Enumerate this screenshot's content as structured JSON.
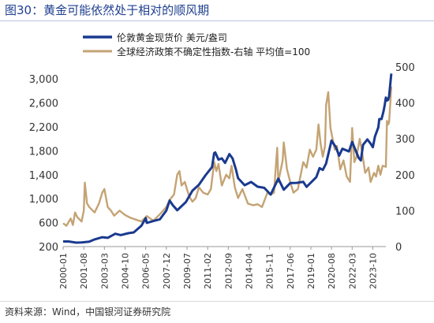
{
  "figure": {
    "title": "图30：黄金可能依然处于相对的顺风期",
    "source": "资料来源：Wind，中国银河证券研究院"
  },
  "chart_data": {
    "type": "line",
    "title": "图30：黄金可能依然处于相对的顺风期",
    "xlabel": "",
    "ylabel": "",
    "x_range": [
      "2000-01",
      "2024-10"
    ],
    "x_tick_labels": [
      "2000-01",
      "2001-08",
      "2003-03",
      "2004-10",
      "2006-05",
      "2007-12",
      "2009-07",
      "2011-02",
      "2012-09",
      "2014-04",
      "2015-11",
      "2017-06",
      "2019-01",
      "2020-08",
      "2022-03",
      "2023-10"
    ],
    "y_left": {
      "ylim": [
        200,
        3200
      ],
      "ticks": [
        200,
        600,
        1000,
        1400,
        1800,
        2200,
        2600,
        3000
      ],
      "tick_labels": [
        "200",
        "600",
        "1,000",
        "1,400",
        "1,800",
        "2,200",
        "2,600",
        "3,000"
      ]
    },
    "y_right": {
      "ylim": [
        0,
        500
      ],
      "ticks": [
        0,
        100,
        200,
        300,
        400,
        500
      ],
      "tick_labels": [
        "0",
        "100",
        "200",
        "300",
        "400",
        "500"
      ]
    },
    "grid": false,
    "legend_position": "top-center",
    "series": [
      {
        "name": "伦敦黄金现货价 美元/盎司",
        "axis": "left",
        "color": "#1a3a8f",
        "points": [
          [
            "2000-01",
            285
          ],
          [
            "2000-06",
            285
          ],
          [
            "2001-01",
            266
          ],
          [
            "2001-06",
            270
          ],
          [
            "2002-01",
            281
          ],
          [
            "2002-06",
            320
          ],
          [
            "2003-01",
            356
          ],
          [
            "2003-06",
            346
          ],
          [
            "2004-01",
            414
          ],
          [
            "2004-06",
            392
          ],
          [
            "2005-01",
            424
          ],
          [
            "2005-06",
            437
          ],
          [
            "2006-01",
            549
          ],
          [
            "2006-05",
            675
          ],
          [
            "2006-06",
            596
          ],
          [
            "2007-01",
            631
          ],
          [
            "2007-06",
            655
          ],
          [
            "2007-12",
            803
          ],
          [
            "2008-03",
            968
          ],
          [
            "2008-06",
            889
          ],
          [
            "2008-10",
            806
          ],
          [
            "2009-01",
            858
          ],
          [
            "2009-06",
            945
          ],
          [
            "2009-12",
            1134
          ],
          [
            "2010-06",
            1233
          ],
          [
            "2010-12",
            1391
          ],
          [
            "2011-06",
            1528
          ],
          [
            "2011-08",
            1760
          ],
          [
            "2011-09",
            1772
          ],
          [
            "2011-12",
            1652
          ],
          [
            "2012-03",
            1674
          ],
          [
            "2012-06",
            1598
          ],
          [
            "2012-10",
            1745
          ],
          [
            "2013-01",
            1670
          ],
          [
            "2013-04",
            1487
          ],
          [
            "2013-06",
            1343
          ],
          [
            "2013-12",
            1225
          ],
          [
            "2014-06",
            1279
          ],
          [
            "2014-12",
            1200
          ],
          [
            "2015-06",
            1181
          ],
          [
            "2015-12",
            1068
          ],
          [
            "2016-07",
            1336
          ],
          [
            "2016-12",
            1150
          ],
          [
            "2017-06",
            1260
          ],
          [
            "2017-12",
            1265
          ],
          [
            "2018-06",
            1282
          ],
          [
            "2018-09",
            1198
          ],
          [
            "2019-06",
            1360
          ],
          [
            "2019-09",
            1510
          ],
          [
            "2019-12",
            1480
          ],
          [
            "2020-03",
            1590
          ],
          [
            "2020-08",
            1970
          ],
          [
            "2020-12",
            1858
          ],
          [
            "2021-03",
            1718
          ],
          [
            "2021-06",
            1834
          ],
          [
            "2021-12",
            1790
          ],
          [
            "2022-03",
            1948
          ],
          [
            "2022-09",
            1680
          ],
          [
            "2022-11",
            1640
          ],
          [
            "2023-01",
            1900
          ],
          [
            "2023-05",
            1990
          ],
          [
            "2023-08",
            1920
          ],
          [
            "2023-10",
            1860
          ],
          [
            "2023-12",
            2040
          ],
          [
            "2024-03",
            2190
          ],
          [
            "2024-04",
            2330
          ],
          [
            "2024-06",
            2330
          ],
          [
            "2024-07",
            2400
          ],
          [
            "2024-08",
            2470
          ],
          [
            "2024-09",
            2570
          ],
          [
            "2024-10",
            2690
          ],
          [
            "2024-11",
            2640
          ],
          [
            "2024-12",
            2650
          ],
          [
            "2025-01",
            2710
          ],
          [
            "2025-02",
            2900
          ],
          [
            "2025-03",
            3090
          ]
        ]
      },
      {
        "name": "全球经济政策不确定性指数-右轴 平均值=100",
        "axis": "right",
        "color": "#c4a374",
        "points": [
          [
            "2000-01",
            65
          ],
          [
            "2000-04",
            58
          ],
          [
            "2000-08",
            78
          ],
          [
            "2000-10",
            60
          ],
          [
            "2000-12",
            95
          ],
          [
            "2001-02",
            82
          ],
          [
            "2001-06",
            70
          ],
          [
            "2001-08",
            100
          ],
          [
            "2001-09",
            178
          ],
          [
            "2001-11",
            120
          ],
          [
            "2002-01",
            110
          ],
          [
            "2002-06",
            95
          ],
          [
            "2002-10",
            120
          ],
          [
            "2003-01",
            150
          ],
          [
            "2003-03",
            160
          ],
          [
            "2003-06",
            110
          ],
          [
            "2003-09",
            100
          ],
          [
            "2003-12",
            86
          ],
          [
            "2004-05",
            100
          ],
          [
            "2004-10",
            88
          ],
          [
            "2005-03",
            80
          ],
          [
            "2005-08",
            75
          ],
          [
            "2006-01",
            70
          ],
          [
            "2006-06",
            85
          ],
          [
            "2006-12",
            72
          ],
          [
            "2007-06",
            90
          ],
          [
            "2007-12",
            110
          ],
          [
            "2008-03",
            130
          ],
          [
            "2008-07",
            145
          ],
          [
            "2008-10",
            200
          ],
          [
            "2008-12",
            210
          ],
          [
            "2009-02",
            170
          ],
          [
            "2009-05",
            180
          ],
          [
            "2009-09",
            140
          ],
          [
            "2009-12",
            125
          ],
          [
            "2010-03",
            135
          ],
          [
            "2010-06",
            165
          ],
          [
            "2010-10",
            150
          ],
          [
            "2011-02",
            145
          ],
          [
            "2011-05",
            160
          ],
          [
            "2011-08",
            235
          ],
          [
            "2011-10",
            210
          ],
          [
            "2011-12",
            230
          ],
          [
            "2012-03",
            170
          ],
          [
            "2012-07",
            200
          ],
          [
            "2012-10",
            190
          ],
          [
            "2012-12",
            225
          ],
          [
            "2013-03",
            165
          ],
          [
            "2013-06",
            135
          ],
          [
            "2013-10",
            160
          ],
          [
            "2014-03",
            120
          ],
          [
            "2014-08",
            115
          ],
          [
            "2014-12",
            118
          ],
          [
            "2015-04",
            110
          ],
          [
            "2015-09",
            150
          ],
          [
            "2015-12",
            145
          ],
          [
            "2016-03",
            150
          ],
          [
            "2016-06",
            275
          ],
          [
            "2016-07",
            180
          ],
          [
            "2016-11",
            240
          ],
          [
            "2016-12",
            290
          ],
          [
            "2017-03",
            215
          ],
          [
            "2017-06",
            180
          ],
          [
            "2017-09",
            150
          ],
          [
            "2018-01",
            160
          ],
          [
            "2018-03",
            190
          ],
          [
            "2018-06",
            235
          ],
          [
            "2018-09",
            220
          ],
          [
            "2018-12",
            270
          ],
          [
            "2019-03",
            250
          ],
          [
            "2019-06",
            270
          ],
          [
            "2019-08",
            340
          ],
          [
            "2019-10",
            285
          ],
          [
            "2019-12",
            250
          ],
          [
            "2020-02",
            280
          ],
          [
            "2020-03",
            395
          ],
          [
            "2020-05",
            430
          ],
          [
            "2020-07",
            330
          ],
          [
            "2020-09",
            300
          ],
          [
            "2020-11",
            270
          ],
          [
            "2021-01",
            280
          ],
          [
            "2021-04",
            215
          ],
          [
            "2021-07",
            240
          ],
          [
            "2021-10",
            195
          ],
          [
            "2022-01",
            180
          ],
          [
            "2022-03",
            330
          ],
          [
            "2022-05",
            235
          ],
          [
            "2022-07",
            250
          ],
          [
            "2022-10",
            300
          ],
          [
            "2022-12",
            265
          ],
          [
            "2023-03",
            205
          ],
          [
            "2023-06",
            220
          ],
          [
            "2023-08",
            180
          ],
          [
            "2023-11",
            205
          ],
          [
            "2024-01",
            195
          ],
          [
            "2024-03",
            225
          ],
          [
            "2024-05",
            200
          ],
          [
            "2024-07",
            225
          ],
          [
            "2024-10",
            222
          ],
          [
            "2024-11",
            350
          ],
          [
            "2024-12",
            340
          ],
          [
            "2025-01",
            345
          ],
          [
            "2025-02",
            395
          ],
          [
            "2025-03",
            445
          ]
        ]
      }
    ]
  }
}
